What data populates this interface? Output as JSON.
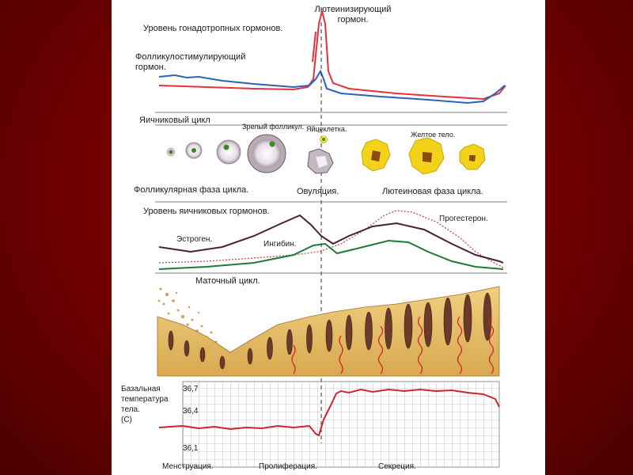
{
  "hormones": {
    "gonadotropic_title": "Уровень гонадотропных гормонов.",
    "lh_label": "Лютеинизирующий гормон.",
    "fsh_label": "Фолликулостимулирующий гормон."
  },
  "ovarian": {
    "title": "Яичниковый цикл",
    "mature_follicle": "Зрелый фолликул.",
    "egg_cell": "Яйцеклетка.",
    "corpus_luteum": "Желтое тело.",
    "follicular_phase": "Фолликулярная фаза цикла.",
    "ovulation": "Овуляция.",
    "luteal_phase": "Лютеиновая фаза цикла."
  },
  "ovarian_hormones": {
    "title": "Уровень яичниковых гормонов.",
    "estrogen": "Эстроген.",
    "inhibin": "Ингибин.",
    "progesterone": "Прогестерон."
  },
  "uterine": {
    "title": "Маточный цикл."
  },
  "temperature": {
    "title_line1": "Базальная",
    "title_line2": "температура",
    "title_line3": "тела.",
    "title_line4": "(С)",
    "tick_high": "36,7",
    "tick_mid": "36,4",
    "tick_low": "36,1",
    "menstruation": "Менструация.",
    "proliferation": "Пролиферация.",
    "secretion": "Секреция."
  },
  "colors": {
    "background": "#7a0000",
    "lh_line": "#e8303a",
    "fsh_line": "#2a62b8",
    "estrogen_line": "#4a1f3a",
    "inhibin_line": "#1f7a3a",
    "progesterone_line": "#c0404a",
    "temperature_line": "#d0242c",
    "corpus_luteum": "#f2d21a",
    "endometrium": "#e6c070"
  }
}
